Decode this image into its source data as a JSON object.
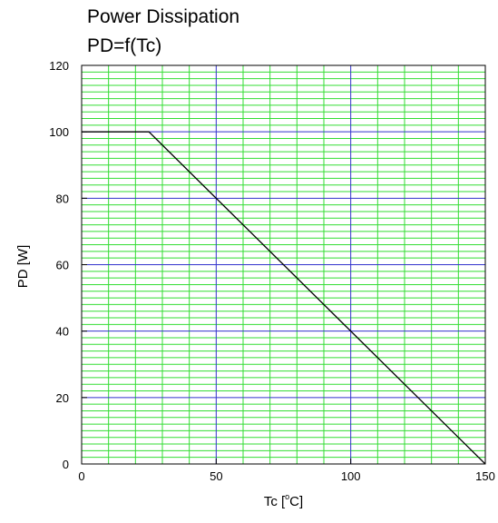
{
  "chart_data": {
    "type": "line",
    "title": "Power Dissipation",
    "subtitle": "PD=f(Tc)",
    "xlabel_main": "Tc [",
    "xlabel_sup": "o",
    "xlabel_tail": "C]",
    "ylabel": "PD [W]",
    "xlim": [
      0,
      150
    ],
    "ylim": [
      0,
      120
    ],
    "x_ticks": [
      0,
      50,
      100,
      150
    ],
    "y_ticks": [
      0,
      20,
      40,
      60,
      80,
      100,
      120
    ],
    "grid": true,
    "major_grid": {
      "x_step": 50,
      "y_step": 20,
      "color": "#3333cc"
    },
    "minor_grid": {
      "x_step": 10,
      "y_step": 2,
      "color": "#33dd33"
    },
    "series": [
      {
        "x": [
          0,
          25,
          150
        ],
        "y": [
          100,
          100,
          0
        ],
        "color": "#000000"
      }
    ]
  }
}
